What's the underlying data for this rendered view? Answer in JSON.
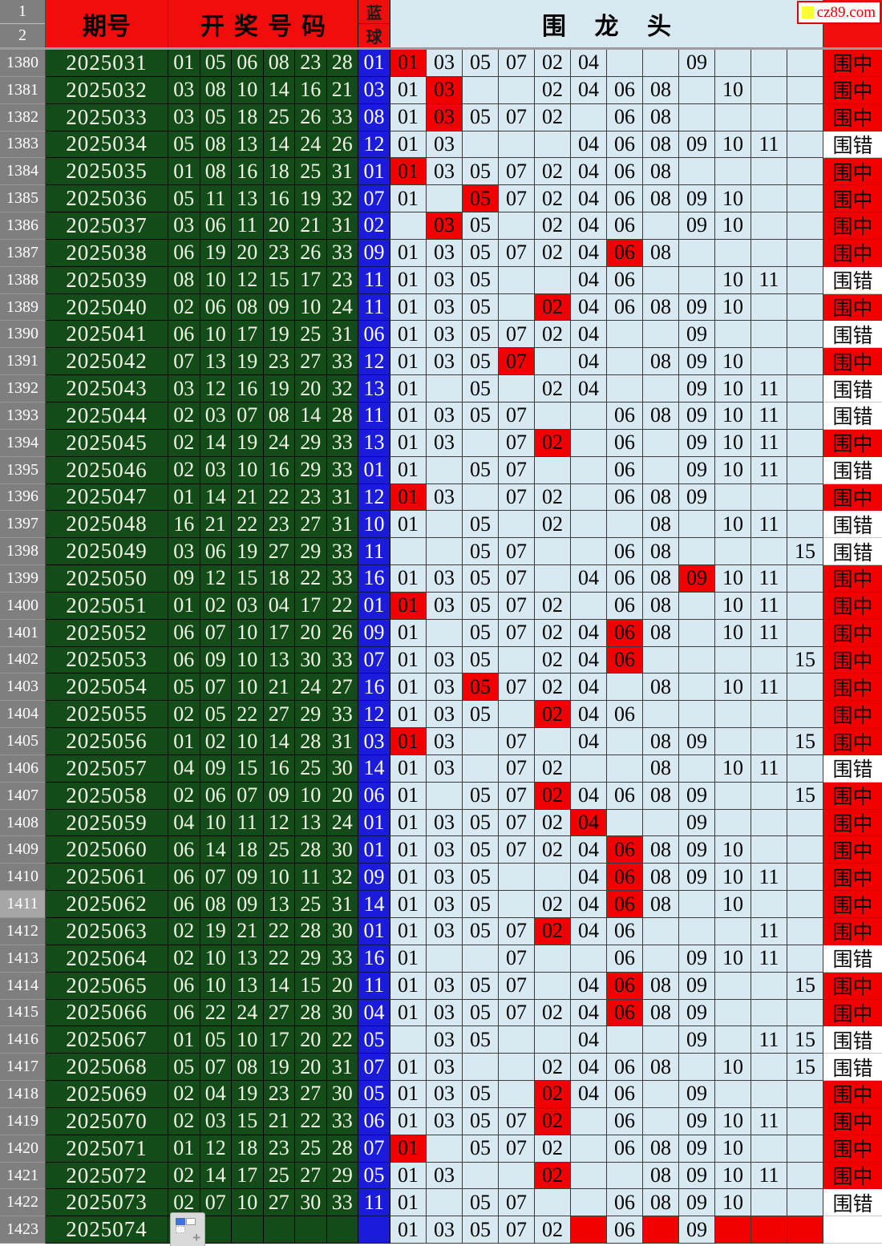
{
  "site": {
    "logo_text": "cz89.com"
  },
  "header": {
    "row1": "1",
    "row2": "2",
    "period": "期号",
    "draw_numbers": "开奖号码",
    "blue_top": "蓝",
    "blue_bottom": "球",
    "dragon_head": "围 龙 头"
  },
  "legend": {
    "hit": "围中",
    "miss": "围错",
    "none": ""
  },
  "grid_column_values": [
    "01",
    "03",
    "05",
    "07",
    "02",
    "04",
    "06",
    "08",
    "09",
    "10",
    "11",
    "15"
  ],
  "colors": {
    "header_red": "#f20d0d",
    "cell_red": "#f20000",
    "dark_green": "#134c19",
    "light_blue": "#d8e9f1",
    "blue_ball": "#1b1bdb",
    "row_header_gray": "#7f7f7f",
    "active_row_gray": "#a6a6a6",
    "logo_yellow": "#ffff2e",
    "logo_red": "#e00000"
  },
  "rows": [
    {
      "idx": "1380",
      "period": "2025031",
      "nums": [
        "01",
        "05",
        "06",
        "08",
        "23",
        "28"
      ],
      "blue": "01",
      "cells": [
        "01",
        "03",
        "05",
        "07",
        "02",
        "04",
        "",
        "",
        "09",
        "",
        "",
        ""
      ],
      "red": [
        0
      ],
      "result": "hit"
    },
    {
      "idx": "1381",
      "period": "2025032",
      "nums": [
        "03",
        "08",
        "10",
        "14",
        "16",
        "21"
      ],
      "blue": "03",
      "cells": [
        "01",
        "03",
        "",
        "",
        "02",
        "04",
        "06",
        "08",
        "",
        "10",
        "",
        ""
      ],
      "red": [
        1
      ],
      "result": "hit"
    },
    {
      "idx": "1382",
      "period": "2025033",
      "nums": [
        "03",
        "05",
        "18",
        "25",
        "26",
        "33"
      ],
      "blue": "08",
      "cells": [
        "01",
        "03",
        "05",
        "07",
        "02",
        "",
        "06",
        "08",
        "",
        "",
        "",
        ""
      ],
      "red": [
        1
      ],
      "result": "hit"
    },
    {
      "idx": "1383",
      "period": "2025034",
      "nums": [
        "05",
        "08",
        "13",
        "14",
        "24",
        "26"
      ],
      "blue": "12",
      "cells": [
        "01",
        "03",
        "",
        "",
        "",
        "04",
        "06",
        "08",
        "09",
        "10",
        "11",
        ""
      ],
      "red": [],
      "result": "miss"
    },
    {
      "idx": "1384",
      "period": "2025035",
      "nums": [
        "01",
        "08",
        "16",
        "18",
        "25",
        "31"
      ],
      "blue": "01",
      "cells": [
        "01",
        "03",
        "05",
        "07",
        "02",
        "04",
        "06",
        "08",
        "",
        "",
        "",
        ""
      ],
      "red": [
        0
      ],
      "result": "hit"
    },
    {
      "idx": "1385",
      "period": "2025036",
      "nums": [
        "05",
        "11",
        "13",
        "16",
        "19",
        "32"
      ],
      "blue": "07",
      "cells": [
        "01",
        "",
        "05",
        "07",
        "02",
        "04",
        "06",
        "08",
        "09",
        "10",
        "",
        ""
      ],
      "red": [
        2
      ],
      "result": "hit"
    },
    {
      "idx": "1386",
      "period": "2025037",
      "nums": [
        "03",
        "06",
        "11",
        "20",
        "21",
        "31"
      ],
      "blue": "02",
      "cells": [
        "",
        "03",
        "05",
        "",
        "02",
        "04",
        "06",
        "",
        "09",
        "10",
        "",
        ""
      ],
      "red": [
        1
      ],
      "result": "hit"
    },
    {
      "idx": "1387",
      "period": "2025038",
      "nums": [
        "06",
        "19",
        "20",
        "23",
        "26",
        "33"
      ],
      "blue": "09",
      "cells": [
        "01",
        "03",
        "05",
        "07",
        "02",
        "04",
        "06",
        "08",
        "",
        "",
        "",
        ""
      ],
      "red": [
        6
      ],
      "result": "hit"
    },
    {
      "idx": "1388",
      "period": "2025039",
      "nums": [
        "08",
        "10",
        "12",
        "15",
        "17",
        "23"
      ],
      "blue": "11",
      "cells": [
        "01",
        "03",
        "05",
        "",
        "",
        "04",
        "06",
        "",
        "",
        "10",
        "11",
        ""
      ],
      "red": [],
      "result": "miss"
    },
    {
      "idx": "1389",
      "period": "2025040",
      "nums": [
        "02",
        "06",
        "08",
        "09",
        "10",
        "24"
      ],
      "blue": "11",
      "cells": [
        "01",
        "03",
        "05",
        "",
        "02",
        "04",
        "06",
        "08",
        "09",
        "10",
        "",
        ""
      ],
      "red": [
        4
      ],
      "result": "hit"
    },
    {
      "idx": "1390",
      "period": "2025041",
      "nums": [
        "06",
        "10",
        "17",
        "19",
        "25",
        "31"
      ],
      "blue": "06",
      "cells": [
        "01",
        "03",
        "05",
        "07",
        "02",
        "04",
        "",
        "",
        "09",
        "",
        "",
        ""
      ],
      "red": [],
      "result": "miss"
    },
    {
      "idx": "1391",
      "period": "2025042",
      "nums": [
        "07",
        "13",
        "19",
        "23",
        "27",
        "33"
      ],
      "blue": "12",
      "cells": [
        "01",
        "03",
        "05",
        "07",
        "",
        "04",
        "",
        "08",
        "09",
        "10",
        "",
        ""
      ],
      "red": [
        3
      ],
      "result": "hit"
    },
    {
      "idx": "1392",
      "period": "2025043",
      "nums": [
        "03",
        "12",
        "16",
        "19",
        "20",
        "32"
      ],
      "blue": "13",
      "cells": [
        "01",
        "",
        "05",
        "",
        "02",
        "04",
        "",
        "",
        "09",
        "10",
        "11",
        ""
      ],
      "red": [],
      "result": "miss"
    },
    {
      "idx": "1393",
      "period": "2025044",
      "nums": [
        "02",
        "03",
        "07",
        "08",
        "14",
        "28"
      ],
      "blue": "11",
      "cells": [
        "01",
        "03",
        "05",
        "07",
        "",
        "",
        "06",
        "08",
        "09",
        "10",
        "11",
        ""
      ],
      "red": [],
      "result": "miss"
    },
    {
      "idx": "1394",
      "period": "2025045",
      "nums": [
        "02",
        "14",
        "19",
        "24",
        "29",
        "33"
      ],
      "blue": "13",
      "cells": [
        "01",
        "03",
        "",
        "07",
        "02",
        "",
        "06",
        "",
        "09",
        "10",
        "11",
        ""
      ],
      "red": [
        4
      ],
      "result": "hit"
    },
    {
      "idx": "1395",
      "period": "2025046",
      "nums": [
        "02",
        "03",
        "10",
        "16",
        "29",
        "33"
      ],
      "blue": "01",
      "cells": [
        "01",
        "",
        "05",
        "07",
        "",
        "",
        "06",
        "",
        "09",
        "10",
        "11",
        ""
      ],
      "red": [],
      "result": "miss"
    },
    {
      "idx": "1396",
      "period": "2025047",
      "nums": [
        "01",
        "14",
        "21",
        "22",
        "23",
        "31"
      ],
      "blue": "12",
      "cells": [
        "01",
        "03",
        "",
        "07",
        "02",
        "",
        "06",
        "08",
        "09",
        "",
        "",
        ""
      ],
      "red": [
        0
      ],
      "result": "hit"
    },
    {
      "idx": "1397",
      "period": "2025048",
      "nums": [
        "16",
        "21",
        "22",
        "23",
        "27",
        "31"
      ],
      "blue": "10",
      "cells": [
        "01",
        "",
        "05",
        "",
        "02",
        "",
        "",
        "08",
        "",
        "10",
        "11",
        ""
      ],
      "red": [],
      "result": "miss"
    },
    {
      "idx": "1398",
      "period": "2025049",
      "nums": [
        "03",
        "06",
        "19",
        "27",
        "29",
        "33"
      ],
      "blue": "11",
      "cells": [
        "",
        "",
        "05",
        "07",
        "",
        "",
        "06",
        "08",
        "",
        "",
        "",
        "15"
      ],
      "red": [],
      "result": "miss"
    },
    {
      "idx": "1399",
      "period": "2025050",
      "nums": [
        "09",
        "12",
        "15",
        "18",
        "22",
        "33"
      ],
      "blue": "16",
      "cells": [
        "01",
        "03",
        "05",
        "07",
        "",
        "04",
        "06",
        "08",
        "09",
        "10",
        "11",
        ""
      ],
      "red": [
        8
      ],
      "result": "hit"
    },
    {
      "idx": "1400",
      "period": "2025051",
      "nums": [
        "01",
        "02",
        "03",
        "04",
        "17",
        "22"
      ],
      "blue": "01",
      "cells": [
        "01",
        "03",
        "05",
        "07",
        "02",
        "",
        "06",
        "08",
        "",
        "10",
        "11",
        ""
      ],
      "red": [
        0
      ],
      "result": "hit"
    },
    {
      "idx": "1401",
      "period": "2025052",
      "nums": [
        "06",
        "07",
        "10",
        "17",
        "20",
        "26"
      ],
      "blue": "09",
      "cells": [
        "01",
        "",
        "05",
        "07",
        "02",
        "04",
        "06",
        "08",
        "",
        "10",
        "11",
        ""
      ],
      "red": [
        6
      ],
      "result": "hit"
    },
    {
      "idx": "1402",
      "period": "2025053",
      "nums": [
        "06",
        "09",
        "10",
        "13",
        "30",
        "33"
      ],
      "blue": "07",
      "cells": [
        "01",
        "03",
        "05",
        "",
        "02",
        "04",
        "06",
        "",
        "",
        "",
        "",
        "15"
      ],
      "red": [
        6
      ],
      "result": "hit"
    },
    {
      "idx": "1403",
      "period": "2025054",
      "nums": [
        "05",
        "07",
        "10",
        "21",
        "24",
        "27"
      ],
      "blue": "16",
      "cells": [
        "01",
        "03",
        "05",
        "07",
        "02",
        "04",
        "",
        "08",
        "",
        "10",
        "11",
        ""
      ],
      "red": [
        2
      ],
      "result": "hit"
    },
    {
      "idx": "1404",
      "period": "2025055",
      "nums": [
        "02",
        "05",
        "22",
        "27",
        "29",
        "33"
      ],
      "blue": "12",
      "cells": [
        "01",
        "03",
        "05",
        "",
        "02",
        "04",
        "06",
        "",
        "",
        "",
        "",
        ""
      ],
      "red": [
        4
      ],
      "result": "hit"
    },
    {
      "idx": "1405",
      "period": "2025056",
      "nums": [
        "01",
        "02",
        "10",
        "14",
        "28",
        "31"
      ],
      "blue": "03",
      "cells": [
        "01",
        "03",
        "",
        "07",
        "",
        "04",
        "",
        "08",
        "09",
        "",
        "",
        "15"
      ],
      "red": [
        0
      ],
      "result": "hit"
    },
    {
      "idx": "1406",
      "period": "2025057",
      "nums": [
        "04",
        "09",
        "15",
        "16",
        "25",
        "30"
      ],
      "blue": "14",
      "cells": [
        "01",
        "03",
        "",
        "07",
        "02",
        "",
        "",
        "08",
        "",
        "10",
        "11",
        ""
      ],
      "red": [],
      "result": "miss"
    },
    {
      "idx": "1407",
      "period": "2025058",
      "nums": [
        "02",
        "06",
        "07",
        "09",
        "10",
        "20"
      ],
      "blue": "06",
      "cells": [
        "01",
        "",
        "05",
        "07",
        "02",
        "04",
        "06",
        "08",
        "09",
        "",
        "",
        "15"
      ],
      "red": [
        4
      ],
      "result": "hit"
    },
    {
      "idx": "1408",
      "period": "2025059",
      "nums": [
        "04",
        "10",
        "11",
        "12",
        "13",
        "24"
      ],
      "blue": "01",
      "cells": [
        "01",
        "03",
        "05",
        "07",
        "02",
        "04",
        "",
        "",
        "09",
        "",
        "",
        ""
      ],
      "red": [
        5
      ],
      "result": "hit"
    },
    {
      "idx": "1409",
      "period": "2025060",
      "nums": [
        "06",
        "14",
        "18",
        "25",
        "28",
        "30"
      ],
      "blue": "01",
      "cells": [
        "01",
        "03",
        "05",
        "07",
        "02",
        "04",
        "06",
        "08",
        "09",
        "10",
        "",
        ""
      ],
      "red": [
        6
      ],
      "result": "hit"
    },
    {
      "idx": "1410",
      "period": "2025061",
      "nums": [
        "06",
        "07",
        "09",
        "10",
        "11",
        "32"
      ],
      "blue": "09",
      "cells": [
        "01",
        "03",
        "05",
        "",
        "",
        "04",
        "06",
        "08",
        "09",
        "10",
        "11",
        ""
      ],
      "red": [
        6
      ],
      "result": "hit"
    },
    {
      "idx": "1411",
      "period": "2025062",
      "nums": [
        "06",
        "08",
        "09",
        "13",
        "25",
        "31"
      ],
      "blue": "14",
      "cells": [
        "01",
        "03",
        "05",
        "",
        "02",
        "04",
        "06",
        "08",
        "",
        "10",
        "",
        ""
      ],
      "red": [
        6
      ],
      "result": "hit",
      "active": true
    },
    {
      "idx": "1412",
      "period": "2025063",
      "nums": [
        "02",
        "19",
        "21",
        "22",
        "28",
        "30"
      ],
      "blue": "01",
      "cells": [
        "01",
        "03",
        "05",
        "07",
        "02",
        "04",
        "06",
        "",
        "",
        "",
        "11",
        ""
      ],
      "red": [
        4
      ],
      "result": "hit"
    },
    {
      "idx": "1413",
      "period": "2025064",
      "nums": [
        "02",
        "10",
        "13",
        "22",
        "29",
        "33"
      ],
      "blue": "16",
      "cells": [
        "01",
        "",
        "",
        "07",
        "",
        "",
        "06",
        "",
        "09",
        "10",
        "11",
        ""
      ],
      "red": [],
      "result": "miss"
    },
    {
      "idx": "1414",
      "period": "2025065",
      "nums": [
        "06",
        "10",
        "13",
        "14",
        "15",
        "20"
      ],
      "blue": "11",
      "cells": [
        "01",
        "03",
        "05",
        "07",
        "",
        "04",
        "06",
        "08",
        "09",
        "",
        "",
        "15"
      ],
      "red": [
        6
      ],
      "result": "hit"
    },
    {
      "idx": "1415",
      "period": "2025066",
      "nums": [
        "06",
        "22",
        "24",
        "27",
        "28",
        "30"
      ],
      "blue": "04",
      "cells": [
        "01",
        "03",
        "05",
        "07",
        "02",
        "04",
        "06",
        "08",
        "09",
        "",
        "",
        ""
      ],
      "red": [
        6
      ],
      "result": "hit"
    },
    {
      "idx": "1416",
      "period": "2025067",
      "nums": [
        "01",
        "05",
        "10",
        "17",
        "20",
        "22"
      ],
      "blue": "05",
      "cells": [
        "",
        "03",
        "05",
        "",
        "",
        "04",
        "",
        "",
        "09",
        "",
        "11",
        "15"
      ],
      "red": [],
      "result": "miss"
    },
    {
      "idx": "1417",
      "period": "2025068",
      "nums": [
        "05",
        "07",
        "08",
        "19",
        "20",
        "31"
      ],
      "blue": "07",
      "cells": [
        "01",
        "03",
        "",
        "",
        "02",
        "04",
        "06",
        "08",
        "",
        "10",
        "",
        "15"
      ],
      "red": [],
      "result": "miss"
    },
    {
      "idx": "1418",
      "period": "2025069",
      "nums": [
        "02",
        "04",
        "19",
        "23",
        "27",
        "30"
      ],
      "blue": "05",
      "cells": [
        "01",
        "03",
        "05",
        "",
        "02",
        "04",
        "06",
        "",
        "09",
        "",
        "",
        ""
      ],
      "red": [
        4
      ],
      "result": "hit"
    },
    {
      "idx": "1419",
      "period": "2025070",
      "nums": [
        "02",
        "03",
        "15",
        "21",
        "22",
        "33"
      ],
      "blue": "06",
      "cells": [
        "01",
        "03",
        "05",
        "07",
        "02",
        "",
        "06",
        "",
        "09",
        "10",
        "11",
        ""
      ],
      "red": [
        4
      ],
      "result": "hit"
    },
    {
      "idx": "1420",
      "period": "2025071",
      "nums": [
        "01",
        "12",
        "18",
        "23",
        "25",
        "28"
      ],
      "blue": "07",
      "cells": [
        "01",
        "",
        "05",
        "07",
        "02",
        "",
        "06",
        "08",
        "09",
        "10",
        "",
        ""
      ],
      "red": [
        0
      ],
      "result": "hit"
    },
    {
      "idx": "1421",
      "period": "2025072",
      "nums": [
        "02",
        "14",
        "17",
        "25",
        "27",
        "29"
      ],
      "blue": "05",
      "cells": [
        "01",
        "03",
        "",
        "",
        "02",
        "",
        "",
        "08",
        "09",
        "10",
        "11",
        ""
      ],
      "red": [
        4
      ],
      "result": "hit"
    },
    {
      "idx": "1422",
      "period": "2025073",
      "nums": [
        "02",
        "07",
        "10",
        "27",
        "30",
        "33"
      ],
      "blue": "11",
      "cells": [
        "01",
        "",
        "05",
        "07",
        "",
        "",
        "06",
        "08",
        "09",
        "10",
        "",
        ""
      ],
      "red": [],
      "result": "miss"
    },
    {
      "idx": "1423",
      "period": "2025074",
      "nums": [
        "",
        "",
        "",
        "",
        "",
        ""
      ],
      "blue": "",
      "cells": [
        "01",
        "03",
        "05",
        "07",
        "02",
        "",
        "06",
        "",
        "09",
        "",
        "",
        ""
      ],
      "red": [
        5,
        7,
        9,
        10,
        11
      ],
      "result": "none",
      "paste_icon": true
    }
  ]
}
